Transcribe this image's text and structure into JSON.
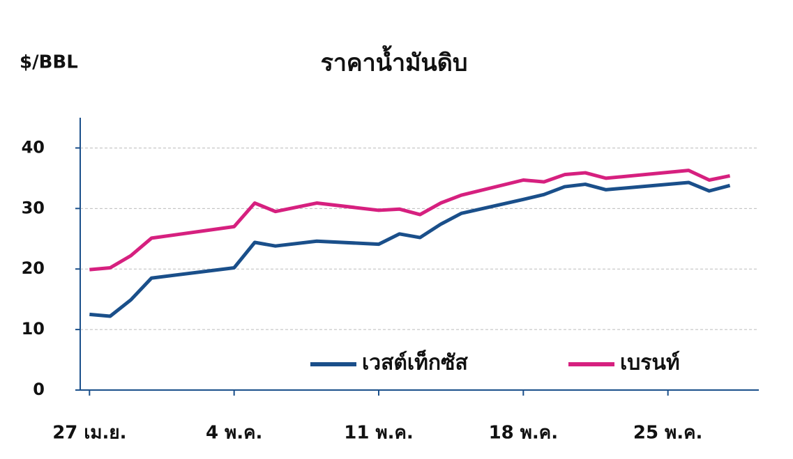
{
  "chart_data": {
    "type": "line",
    "title": "ราคาน้ำมันดิบ",
    "y_label": "$/BBL",
    "x": [
      0,
      1,
      2,
      3,
      7,
      8,
      9,
      11,
      14,
      15,
      16,
      17,
      18,
      21,
      22,
      23,
      24,
      25,
      29,
      30,
      31
    ],
    "xlim": [
      -0.45,
      32.4
    ],
    "xticks": [
      {
        "value": 0,
        "label": "27 เม.ย."
      },
      {
        "value": 7,
        "label": "4 พ.ค."
      },
      {
        "value": 14,
        "label": "11 พ.ค."
      },
      {
        "value": 21,
        "label": "18 พ.ค."
      },
      {
        "value": 28,
        "label": "25 พ.ค."
      }
    ],
    "ylim": [
      0,
      45
    ],
    "yticks": [
      0,
      10,
      20,
      30,
      40
    ],
    "grid": true,
    "legend": "lower right",
    "series": [
      {
        "name": "เวสต์เท็กซัส",
        "color": "#1a4f8a",
        "values": [
          12.5,
          12.2,
          14.9,
          18.5,
          20.2,
          24.4,
          23.8,
          24.6,
          24.1,
          25.8,
          25.2,
          27.4,
          29.2,
          31.5,
          32.3,
          33.6,
          34.0,
          33.1,
          34.3,
          32.9,
          33.8
        ]
      },
      {
        "name": "เบรนท์",
        "color": "#d6207f",
        "values": [
          19.9,
          20.2,
          22.2,
          25.1,
          27.0,
          30.9,
          29.5,
          30.9,
          29.7,
          29.9,
          29.0,
          30.9,
          32.2,
          34.7,
          34.4,
          35.6,
          35.9,
          35.0,
          36.3,
          34.7,
          35.4
        ]
      }
    ]
  }
}
